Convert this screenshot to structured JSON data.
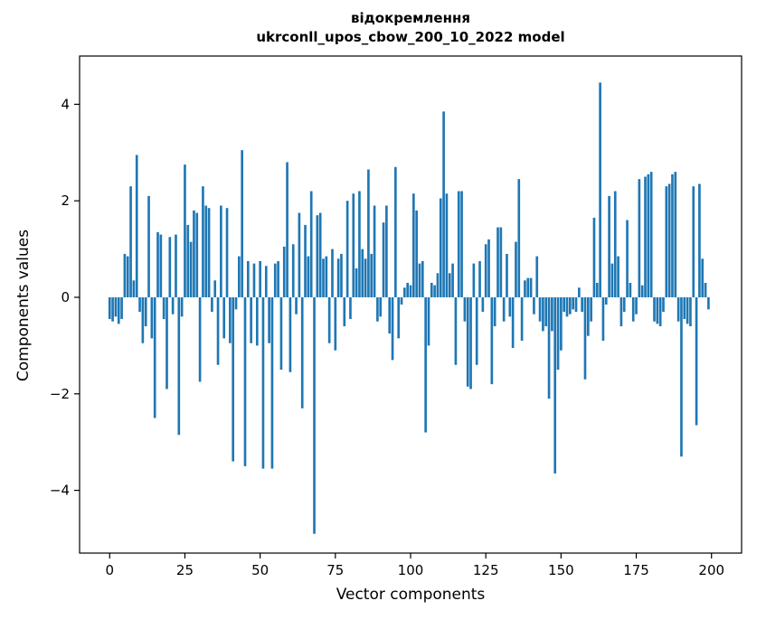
{
  "chart_data": {
    "type": "bar",
    "title_line1": "відокремлення",
    "title_line2": "ukrconll_upos_cbow_200_10_2022 model",
    "xlabel": "Vector components",
    "ylabel": "Components values",
    "xlim": [
      -10,
      210
    ],
    "ylim": [
      -5.3,
      5.0
    ],
    "xticks": [
      0,
      25,
      50,
      75,
      100,
      125,
      150,
      175,
      200
    ],
    "yticks": [
      -4,
      -2,
      0,
      2,
      4
    ],
    "grid": false,
    "legend": "none",
    "bar_color": "#1f77b4",
    "categories_note": "x = vector component index 0..199",
    "values": [
      -0.45,
      -0.5,
      -0.4,
      -0.55,
      -0.45,
      0.9,
      0.85,
      2.3,
      0.35,
      2.95,
      -0.3,
      -0.95,
      -0.6,
      2.1,
      -0.85,
      -2.5,
      1.35,
      1.3,
      -0.45,
      -1.9,
      1.25,
      -0.35,
      1.3,
      -2.85,
      -0.4,
      2.75,
      1.5,
      1.15,
      1.8,
      1.75,
      -1.75,
      2.3,
      1.9,
      1.85,
      -0.3,
      0.35,
      -1.4,
      1.9,
      -0.85,
      1.85,
      -0.95,
      -3.4,
      -0.25,
      0.85,
      3.05,
      -3.5,
      0.75,
      -0.95,
      0.7,
      -1.0,
      0.75,
      -3.55,
      0.65,
      -0.95,
      -3.55,
      0.7,
      0.75,
      -1.5,
      1.05,
      2.8,
      -1.55,
      1.1,
      -0.35,
      1.75,
      -2.3,
      1.5,
      0.85,
      2.2,
      -4.9,
      1.7,
      1.75,
      0.8,
      0.85,
      -0.95,
      1.0,
      -1.1,
      0.8,
      0.9,
      -0.6,
      2.0,
      -0.45,
      2.15,
      0.6,
      2.2,
      1.0,
      0.8,
      2.65,
      0.9,
      1.9,
      -0.5,
      -0.4,
      1.55,
      1.9,
      -0.75,
      -1.3,
      2.7,
      -0.85,
      -0.15,
      0.2,
      0.3,
      0.25,
      2.15,
      1.8,
      0.7,
      0.75,
      -2.8,
      -1.0,
      0.3,
      0.25,
      0.5,
      2.05,
      3.85,
      2.15,
      0.5,
      0.7,
      -1.4,
      2.2,
      2.2,
      -0.5,
      -1.85,
      -1.9,
      0.7,
      -1.4,
      0.75,
      -0.3,
      1.1,
      1.2,
      -1.8,
      -0.6,
      1.45,
      1.45,
      -0.5,
      0.9,
      -0.4,
      -1.05,
      1.15,
      2.45,
      -0.9,
      0.35,
      0.4,
      0.4,
      -0.35,
      0.85,
      -0.5,
      -0.7,
      -0.6,
      -2.1,
      -0.7,
      -3.65,
      -1.5,
      -1.1,
      -0.3,
      -0.4,
      -0.35,
      -0.25,
      -0.3,
      0.2,
      -0.3,
      -1.7,
      -0.8,
      -0.5,
      1.65,
      0.3,
      4.45,
      -0.9,
      -0.15,
      2.1,
      0.7,
      2.2,
      0.85,
      -0.6,
      -0.3,
      1.6,
      0.3,
      -0.5,
      -0.35,
      2.45,
      0.25,
      2.5,
      2.55,
      2.6,
      -0.5,
      -0.55,
      -0.6,
      -0.3,
      2.3,
      2.35,
      2.55,
      2.6,
      -0.5,
      -3.3,
      -0.45,
      -0.55,
      -0.6,
      2.3,
      -2.65,
      2.35,
      0.8,
      0.3,
      -0.25
    ]
  }
}
